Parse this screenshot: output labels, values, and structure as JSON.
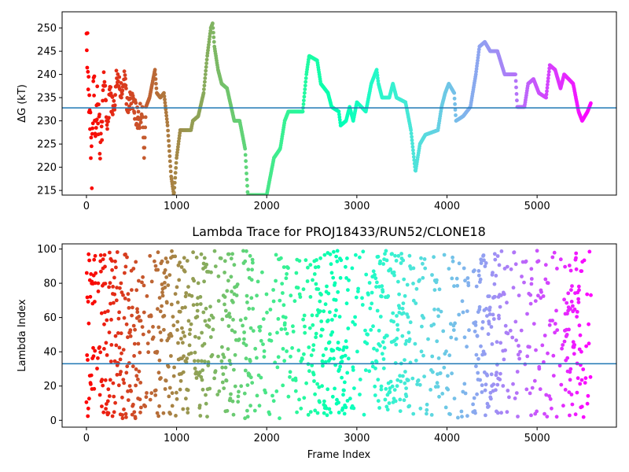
{
  "chart_data": [
    {
      "type": "scatter",
      "title": "",
      "xlabel": "",
      "ylabel": "ΔG (kT)",
      "xlim": [
        -270,
        5880
      ],
      "ylim": [
        214,
        253.5
      ],
      "xticks": [
        0,
        1000,
        2000,
        3000,
        4000,
        5000
      ],
      "xtick_labels": [
        "0",
        "1000",
        "2000",
        "3000",
        "4000",
        "5000"
      ],
      "yticks": [
        215,
        220,
        225,
        230,
        235,
        240,
        245,
        250
      ],
      "ytick_labels": [
        "215",
        "220",
        "225",
        "230",
        "235",
        "240",
        "245",
        "250"
      ],
      "colormap": "rainbow (reversed: red at start, violet at end)",
      "hline": {
        "y": 232.8,
        "color": "#1f77b4"
      },
      "frames_total": 5600,
      "trace_keypoints": [
        [
          0,
          250
        ],
        [
          20,
          240
        ],
        [
          40,
          230
        ],
        [
          60,
          220
        ],
        [
          80,
          241
        ],
        [
          100,
          230
        ],
        [
          120,
          236
        ],
        [
          150,
          226
        ],
        [
          180,
          232
        ],
        [
          200,
          240
        ],
        [
          230,
          228
        ],
        [
          260,
          236
        ],
        [
          300,
          232
        ],
        [
          340,
          240
        ],
        [
          380,
          237
        ],
        [
          420,
          239
        ],
        [
          460,
          233
        ],
        [
          500,
          235
        ],
        [
          540,
          232
        ],
        [
          580,
          230
        ],
        [
          620,
          233
        ],
        [
          640,
          222
        ],
        [
          660,
          233
        ],
        [
          700,
          235
        ],
        [
          740,
          239
        ],
        [
          760,
          241
        ],
        [
          780,
          236
        ],
        [
          820,
          235
        ],
        [
          860,
          236
        ],
        [
          900,
          229
        ],
        [
          940,
          218
        ],
        [
          970,
          214
        ],
        [
          1000,
          222
        ],
        [
          1040,
          228
        ],
        [
          1160,
          228
        ],
        [
          1180,
          230
        ],
        [
          1240,
          231
        ],
        [
          1300,
          236
        ],
        [
          1340,
          244
        ],
        [
          1380,
          250
        ],
        [
          1400,
          251
        ],
        [
          1420,
          246
        ],
        [
          1460,
          241
        ],
        [
          1500,
          238
        ],
        [
          1560,
          237
        ],
        [
          1640,
          230
        ],
        [
          1700,
          230
        ],
        [
          1760,
          224
        ],
        [
          1790,
          214
        ],
        [
          2000,
          214
        ],
        [
          2040,
          218
        ],
        [
          2080,
          222
        ],
        [
          2150,
          224
        ],
        [
          2200,
          230
        ],
        [
          2240,
          232
        ],
        [
          2400,
          232
        ],
        [
          2440,
          240
        ],
        [
          2470,
          244
        ],
        [
          2560,
          243
        ],
        [
          2600,
          238
        ],
        [
          2680,
          236
        ],
        [
          2720,
          233
        ],
        [
          2800,
          232
        ],
        [
          2820,
          229
        ],
        [
          2880,
          230
        ],
        [
          2920,
          233
        ],
        [
          2960,
          230
        ],
        [
          3000,
          234
        ],
        [
          3100,
          232
        ],
        [
          3160,
          238
        ],
        [
          3220,
          241
        ],
        [
          3240,
          238
        ],
        [
          3280,
          235
        ],
        [
          3360,
          235
        ],
        [
          3400,
          238
        ],
        [
          3440,
          235
        ],
        [
          3540,
          234
        ],
        [
          3600,
          228
        ],
        [
          3650,
          219
        ],
        [
          3700,
          225
        ],
        [
          3760,
          227
        ],
        [
          3900,
          228
        ],
        [
          3940,
          233
        ],
        [
          3980,
          236
        ],
        [
          4020,
          238
        ],
        [
          4080,
          236
        ],
        [
          4100,
          230
        ],
        [
          4180,
          231
        ],
        [
          4260,
          233
        ],
        [
          4320,
          240
        ],
        [
          4360,
          246
        ],
        [
          4420,
          247
        ],
        [
          4480,
          245
        ],
        [
          4560,
          245
        ],
        [
          4640,
          240
        ],
        [
          4760,
          240
        ],
        [
          4780,
          233
        ],
        [
          4860,
          233
        ],
        [
          4900,
          238
        ],
        [
          4960,
          239
        ],
        [
          5000,
          237
        ],
        [
          5020,
          236
        ],
        [
          5100,
          235
        ],
        [
          5140,
          242
        ],
        [
          5200,
          241
        ],
        [
          5260,
          237
        ],
        [
          5300,
          240
        ],
        [
          5400,
          238
        ],
        [
          5460,
          232
        ],
        [
          5500,
          230
        ],
        [
          5560,
          232
        ],
        [
          5600,
          234
        ]
      ]
    },
    {
      "type": "scatter",
      "title": "Lambda Trace for PROJ18433/RUN52/CLONE18",
      "xlabel": "Frame Index",
      "ylabel": "Lambda Index",
      "xlim": [
        -270,
        5880
      ],
      "ylim": [
        -4,
        103
      ],
      "xticks": [
        0,
        1000,
        2000,
        3000,
        4000,
        5000
      ],
      "xtick_labels": [
        "0",
        "1000",
        "2000",
        "3000",
        "4000",
        "5000"
      ],
      "yticks": [
        0,
        20,
        40,
        60,
        80,
        100
      ],
      "ytick_labels": [
        "0",
        "20",
        "40",
        "60",
        "80",
        "100"
      ],
      "colormap": "rainbow (reversed: red at start, violet at end)",
      "hline": {
        "y": 33,
        "color": "#1f77b4"
      },
      "frames_total": 5600,
      "value_range": [
        1,
        99
      ],
      "dense_bands": [
        [
          0,
          100
        ],
        [
          150,
          600
        ],
        [
          760,
          960
        ],
        [
          1000,
          1150
        ],
        [
          1200,
          1350
        ],
        [
          1500,
          1650
        ],
        [
          1740,
          1850
        ],
        [
          2500,
          2900
        ],
        [
          3200,
          3600
        ],
        [
          4300,
          4600
        ],
        [
          5300,
          5500
        ]
      ]
    }
  ]
}
